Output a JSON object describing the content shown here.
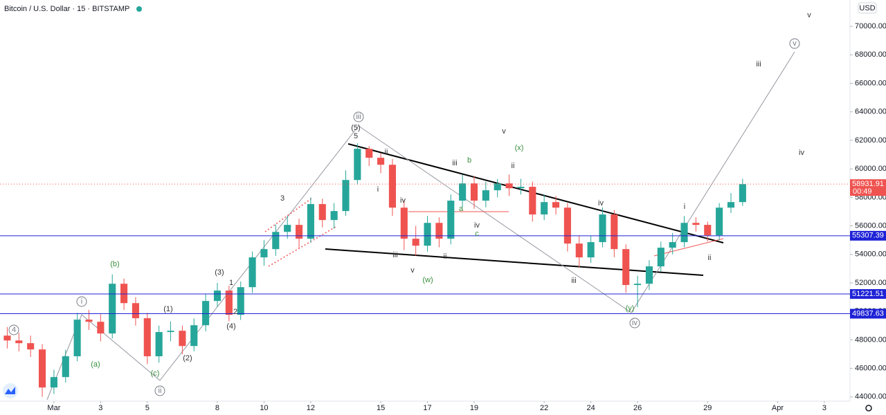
{
  "chart_data": {
    "type": "candlestick",
    "title": "Bitcoin / U.S. Dollar · 15 · BITSTAMP",
    "currency": "USD",
    "up_color": "#26a69a",
    "down_color": "#ef5350",
    "grid": false,
    "x": [
      -1,
      -0.5,
      0,
      0.5,
      1,
      1.5,
      2,
      2.5,
      3,
      3.5,
      4,
      4.5,
      5,
      5.5,
      6,
      6.5,
      7,
      7.5,
      8,
      8.5,
      9,
      9.5,
      10,
      10.5,
      11,
      11.5,
      12,
      12.5,
      13,
      13.5,
      14,
      14.5,
      15,
      15.5,
      16,
      16.5,
      17,
      17.5,
      18,
      18.5,
      19,
      19.5,
      20,
      20.5,
      21,
      21.5,
      22,
      22.5,
      23,
      23.5,
      24,
      24.5,
      25,
      25.5,
      26,
      26.5,
      27,
      27.5,
      28,
      28.5,
      29,
      29.5,
      30,
      30.5
    ],
    "open": [
      48300,
      47960,
      47770,
      47330,
      44660,
      45390,
      46850,
      49420,
      49270,
      48450,
      51940,
      50580,
      49520,
      46850,
      48550,
      48640,
      47570,
      49030,
      50730,
      51460,
      49760,
      51700,
      53790,
      54370,
      55580,
      56070,
      55100,
      57530,
      56410,
      57040,
      59220,
      61410,
      60780,
      60290,
      57280,
      55100,
      54610,
      56210,
      55100,
      57770,
      58980,
      57770,
      58500,
      58980,
      58640,
      58740,
      56800,
      57670,
      57280,
      54760,
      53790,
      54860,
      56800,
      54370,
      51850,
      51940,
      53160,
      54470,
      54860,
      56210,
      56070,
      55340,
      57280,
      57670
    ],
    "high": [
      48900,
      48500,
      48300,
      47700,
      45900,
      47300,
      49900,
      50100,
      49800,
      52600,
      52300,
      51000,
      49900,
      49000,
      49300,
      49000,
      49500,
      51200,
      52000,
      51800,
      52100,
      54200,
      55000,
      56100,
      56700,
      56500,
      58000,
      57900,
      57600,
      59900,
      61800,
      61600,
      61100,
      60700,
      57800,
      56000,
      56700,
      56600,
      58200,
      59600,
      59500,
      59100,
      59300,
      59600,
      59300,
      59100,
      58200,
      58100,
      57600,
      55300,
      55300,
      57300,
      57100,
      54700,
      52500,
      53600,
      54900,
      55500,
      56700,
      56600,
      56300,
      57600,
      58300,
      59300
    ],
    "low": [
      47400,
      47200,
      46800,
      44000,
      44200,
      45000,
      46500,
      48700,
      47900,
      48100,
      50100,
      49000,
      46300,
      46400,
      47900,
      47000,
      47200,
      48600,
      50300,
      49300,
      49400,
      51300,
      53200,
      53900,
      55100,
      54400,
      54800,
      55900,
      55800,
      56700,
      58900,
      60200,
      59700,
      56700,
      54300,
      53900,
      54200,
      54500,
      54700,
      57300,
      57200,
      57300,
      58000,
      58100,
      58200,
      56300,
      56400,
      56800,
      54200,
      53100,
      53400,
      54500,
      53800,
      51300,
      50300,
      51500,
      52800,
      54000,
      54500,
      55600,
      54900,
      55000,
      56900,
      57400
    ],
    "close": [
      47960,
      47770,
      47330,
      44660,
      45390,
      46850,
      49420,
      49270,
      48450,
      51940,
      50580,
      49520,
      46850,
      48550,
      48640,
      47570,
      49030,
      50730,
      51460,
      49760,
      51700,
      53790,
      54370,
      55580,
      56070,
      55100,
      57530,
      56410,
      57040,
      59220,
      61410,
      60780,
      60290,
      57280,
      55100,
      54610,
      56210,
      55100,
      57770,
      58980,
      57770,
      58500,
      58980,
      58640,
      58740,
      56800,
      57670,
      57280,
      54760,
      53790,
      54860,
      56800,
      54370,
      51850,
      51940,
      53160,
      54470,
      54860,
      56210,
      56070,
      55340,
      57280,
      57670,
      58930
    ],
    "xlim": [
      -1.31,
      35.1
    ],
    "xticks": [
      {
        "value": 1,
        "label": "Mar"
      },
      3,
      5,
      8,
      10,
      12,
      15,
      17,
      19,
      22,
      24,
      26,
      29,
      {
        "value": 32,
        "label": "Apr"
      },
      {
        "value": 34,
        "label": "3"
      }
    ],
    "ylim": [
      43700,
      71850
    ],
    "yticks": [
      {
        "value": 44000,
        "label": "44000.00"
      },
      {
        "value": 46000,
        "label": "46000.00"
      },
      {
        "value": 48000,
        "label": "48000.00"
      },
      {
        "value": 50000,
        "label": "50000.00"
      },
      {
        "value": 52000,
        "label": "52000.00"
      },
      {
        "value": 54000,
        "label": "54000.00"
      },
      {
        "value": 56000,
        "label": "56000.00"
      },
      {
        "value": 58000,
        "label": "58000.00"
      },
      {
        "value": 60000,
        "label": "60000.00"
      },
      {
        "value": 62000,
        "label": "62000.00"
      },
      {
        "value": 64000,
        "label": "64000.00"
      },
      {
        "value": 66000,
        "label": "66000.00"
      },
      {
        "value": 68000,
        "label": "68000.00"
      },
      {
        "value": 70000,
        "label": "70000.00"
      }
    ],
    "last_price": 58931.91,
    "countdown": "00:49",
    "price_lines": [
      55307.39,
      51221.51,
      49837.63
    ],
    "annotations": [
      {
        "text": "4",
        "color": "#787b86",
        "circled": true
      },
      {
        "text": "i",
        "color": "#787b86",
        "circled": true
      },
      {
        "text": "ii",
        "color": "#787b86",
        "circled": true
      },
      {
        "text": "iii",
        "color": "#787b86",
        "circled": true
      },
      {
        "text": "iv",
        "color": "#787b86",
        "circled": true
      },
      {
        "text": "v",
        "color": "#787b86",
        "circled": true
      },
      {
        "text": "(b)",
        "color": "#388e3c"
      },
      {
        "text": "(a)",
        "color": "#388e3c"
      },
      {
        "text": "(c)",
        "color": "#388e3c"
      },
      {
        "text": "(1)",
        "color": "#333333"
      },
      {
        "text": "(2)",
        "color": "#333333"
      },
      {
        "text": "(3)",
        "color": "#333333"
      },
      {
        "text": "(4)",
        "color": "#333333"
      },
      {
        "text": "1",
        "color": "#333333"
      },
      {
        "text": "2",
        "color": "#333333"
      },
      {
        "text": "3",
        "color": "#333333"
      },
      {
        "text": "(5)",
        "color": "#333333"
      },
      {
        "text": "5",
        "color": "#333333"
      },
      {
        "text": "ii",
        "color": "#333333"
      },
      {
        "text": "i",
        "color": "#333333"
      },
      {
        "text": "iv",
        "color": "#333333"
      },
      {
        "text": "iii",
        "color": "#333333"
      },
      {
        "text": "v",
        "color": "#333333"
      },
      {
        "text": "(w)",
        "color": "#388e3c"
      },
      {
        "text": "iii",
        "color": "#333333"
      },
      {
        "text": "b",
        "color": "#388e3c"
      },
      {
        "text": "a",
        "color": "#388e3c"
      },
      {
        "text": "iv",
        "color": "#333333"
      },
      {
        "text": "c",
        "color": "#388e3c"
      },
      {
        "text": "ii",
        "color": "#333333"
      },
      {
        "text": "v",
        "color": "#333333"
      },
      {
        "text": "(x)",
        "color": "#388e3c"
      },
      {
        "text": "ii",
        "color": "#333333"
      },
      {
        "text": "iv",
        "color": "#333333"
      },
      {
        "text": "iii",
        "color": "#333333"
      },
      {
        "text": "(y)",
        "color": "#388e3c"
      },
      {
        "text": "i",
        "color": "#333333"
      },
      {
        "text": "ii",
        "color": "#333333"
      },
      {
        "text": "iii",
        "color": "#333333"
      },
      {
        "text": "iv",
        "color": "#333333"
      },
      {
        "text": "v",
        "color": "#333333"
      }
    ]
  }
}
